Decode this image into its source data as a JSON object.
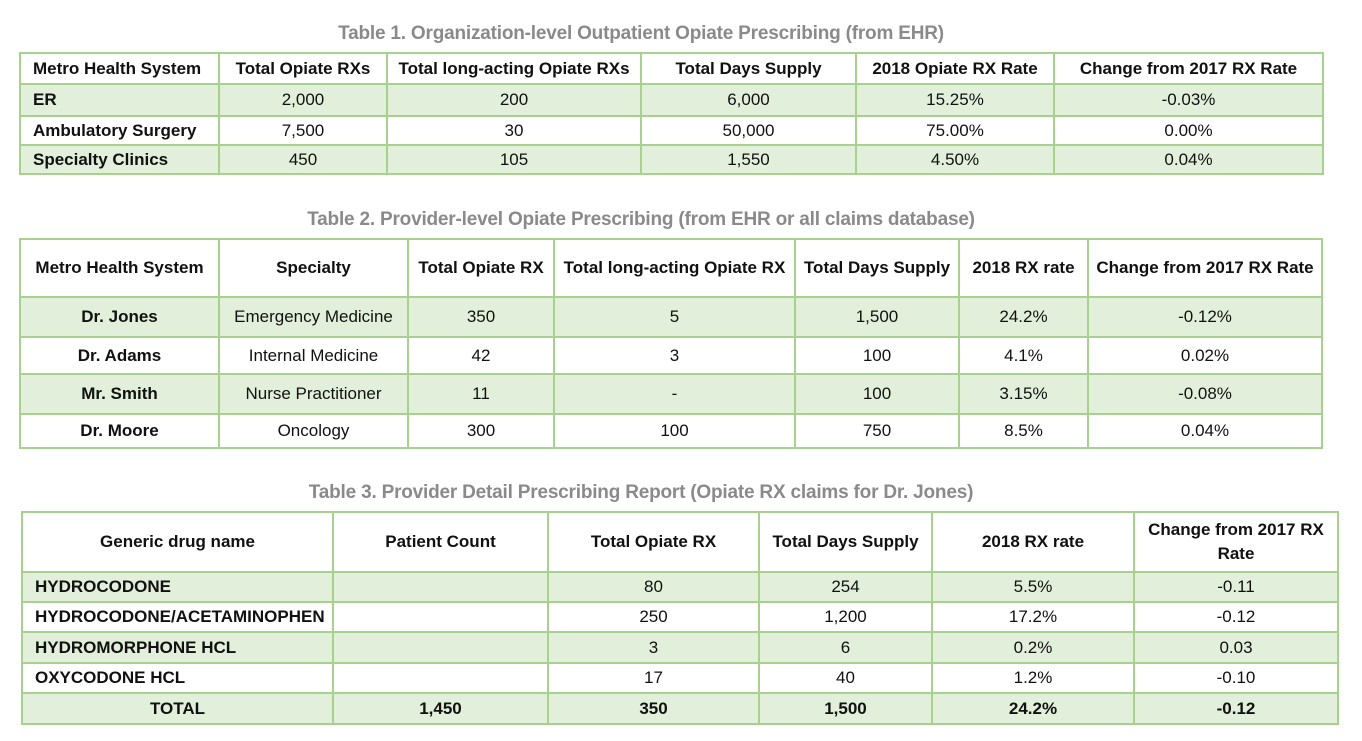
{
  "table1": {
    "caption": "Table 1. Organization-level Outpatient Opiate Prescribing (from EHR)",
    "headers": [
      "Metro Health System",
      "Total Opiate RXs",
      "Total long-acting Opiate RXs",
      "Total Days Supply",
      "2018 Opiate RX Rate",
      "Change from 2017 RX Rate"
    ],
    "rows": [
      [
        "ER",
        "2,000",
        "200",
        "6,000",
        "15.25%",
        "-0.03%"
      ],
      [
        "Ambulatory Surgery",
        "7,500",
        "30",
        "50,000",
        "75.00%",
        "0.00%"
      ],
      [
        "Specialty Clinics",
        "450",
        "105",
        "1,550",
        "4.50%",
        "0.04%"
      ]
    ]
  },
  "table2": {
    "caption": "Table 2. Provider-level Opiate Prescribing (from EHR or all claims database)",
    "headers": [
      "Metro Health System",
      "Specialty",
      "Total Opiate RX",
      "Total long-acting Opiate RX",
      "Total Days Supply",
      "2018 RX rate",
      "Change from 2017 RX Rate"
    ],
    "rows": [
      [
        "Dr. Jones",
        "Emergency Medicine",
        "350",
        "5",
        "1,500",
        "24.2%",
        "-0.12%"
      ],
      [
        "Dr. Adams",
        "Internal Medicine",
        "42",
        "3",
        "100",
        "4.1%",
        "0.02%"
      ],
      [
        "Mr. Smith",
        "Nurse Practitioner",
        "11",
        "-",
        "100",
        "3.15%",
        "-0.08%"
      ],
      [
        "Dr. Moore",
        "Oncology",
        "300",
        "100",
        "750",
        "8.5%",
        "0.04%"
      ]
    ]
  },
  "table3": {
    "caption": "Table 3. Provider Detail Prescribing Report (Opiate RX claims for Dr. Jones)",
    "headers": [
      "Generic drug name",
      "Patient Count",
      "Total Opiate RX",
      "Total Days Supply",
      "2018 RX rate",
      "Change from 2017 RX Rate"
    ],
    "rows": [
      [
        "HYDROCODONE",
        "",
        "80",
        "254",
        "5.5%",
        "-0.11"
      ],
      [
        "HYDROCODONE/ACETAMINOPHEN",
        "",
        "250",
        "1,200",
        "17.2%",
        "-0.12"
      ],
      [
        "HYDROMORPHONE HCL",
        "",
        "3",
        "6",
        "0.2%",
        "0.03"
      ],
      [
        "OXYCODONE HCL",
        "",
        "17",
        "40",
        "1.2%",
        "-0.10"
      ],
      [
        "TOTAL",
        "1,450",
        "350",
        "1,500",
        "24.2%",
        "-0.12"
      ]
    ]
  }
}
